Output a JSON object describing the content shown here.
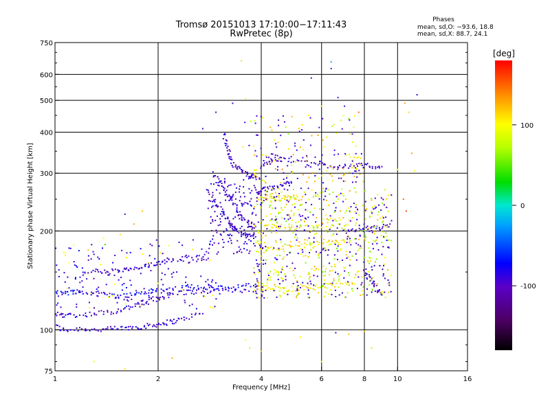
{
  "chart_data": {
    "type": "scatter",
    "title": "Tromsø 20151013 17:10:00−17:11:43",
    "subtitle": "RwPretec (8p)",
    "xlabel": "Frequency [MHz]",
    "ylabel": "Stationary phase Virtual Height [km]",
    "x_scale": "log",
    "y_scale": "log",
    "xlim": [
      1,
      16
    ],
    "ylim": [
      75,
      750
    ],
    "x_ticks": [
      1,
      2,
      4,
      6,
      8,
      10,
      16
    ],
    "x_gridlines": [
      2,
      4,
      6,
      8,
      10
    ],
    "y_ticks": [
      75,
      100,
      200,
      300,
      400,
      500,
      600,
      750
    ],
    "y_gridlines": [
      100,
      200,
      300,
      400,
      500,
      600
    ],
    "grid": true,
    "phases_box": {
      "header": "Phases",
      "line_o": "mean, sd,O: −93.6, 18.8",
      "line_x": "mean, sd,X:  88.7, 24.1"
    },
    "colorbar": {
      "label": "[deg]",
      "range": [
        -180,
        180
      ],
      "ticks": [
        100,
        0,
        -100
      ],
      "colormap": "rainbow (black → purple → blue → cyan → green → yellow → orange → red)"
    },
    "traces": [
      {
        "phase": -100,
        "points": [
          [
            1.0,
            103
          ],
          [
            1.05,
            100
          ],
          [
            1.1,
            100
          ],
          [
            1.2,
            101
          ],
          [
            1.3,
            100
          ],
          [
            1.4,
            100
          ],
          [
            1.5,
            101
          ],
          [
            1.6,
            101
          ],
          [
            1.7,
            102
          ],
          [
            1.8,
            102
          ],
          [
            1.9,
            103
          ],
          [
            2.0,
            104
          ],
          [
            2.1,
            105
          ],
          [
            2.2,
            106
          ],
          [
            2.3,
            107
          ],
          [
            2.5,
            110
          ],
          [
            2.7,
            112
          ]
        ]
      },
      {
        "phase": -100,
        "points": [
          [
            1.0,
            112
          ],
          [
            1.05,
            111
          ],
          [
            1.1,
            111
          ],
          [
            1.2,
            111
          ],
          [
            1.3,
            112
          ],
          [
            1.4,
            113
          ],
          [
            1.5,
            114
          ],
          [
            1.6,
            116
          ],
          [
            1.7,
            118
          ],
          [
            1.8,
            121
          ],
          [
            1.9,
            123
          ],
          [
            2.0,
            125
          ],
          [
            2.1,
            127
          ],
          [
            2.2,
            129
          ],
          [
            2.4,
            130
          ],
          [
            2.6,
            131
          ],
          [
            2.8,
            131
          ],
          [
            3.0,
            131
          ],
          [
            3.2,
            132
          ],
          [
            3.5,
            132
          ],
          [
            3.9,
            133
          ]
        ]
      },
      {
        "phase": -80,
        "points": [
          [
            1.0,
            129
          ],
          [
            1.05,
            130
          ],
          [
            1.1,
            130
          ],
          [
            1.15,
            131
          ],
          [
            1.2,
            130
          ],
          [
            1.3,
            129
          ],
          [
            1.4,
            128
          ],
          [
            1.5,
            127
          ],
          [
            1.6,
            127
          ],
          [
            1.7,
            128
          ],
          [
            1.8,
            130
          ],
          [
            1.9,
            131
          ],
          [
            2.0,
            132
          ],
          [
            2.2,
            133
          ],
          [
            2.4,
            134
          ],
          [
            2.6,
            134
          ],
          [
            2.8,
            134
          ],
          [
            3.0,
            135
          ],
          [
            3.3,
            135
          ],
          [
            3.6,
            136
          ],
          [
            3.9,
            136
          ]
        ]
      },
      {
        "phase": -100,
        "points": [
          [
            1.2,
            150
          ],
          [
            1.3,
            151
          ],
          [
            1.4,
            150
          ],
          [
            1.5,
            151
          ],
          [
            1.6,
            152
          ],
          [
            1.7,
            153
          ],
          [
            1.8,
            155
          ],
          [
            1.9,
            157
          ],
          [
            2.0,
            160
          ],
          [
            2.1,
            162
          ],
          [
            2.2,
            164
          ],
          [
            2.4,
            166
          ],
          [
            2.6,
            166
          ],
          [
            2.8,
            165
          ]
        ]
      },
      {
        "phase": -100,
        "points": [
          [
            2.8,
            265
          ],
          [
            2.9,
            250
          ],
          [
            3.0,
            237
          ],
          [
            3.1,
            225
          ],
          [
            3.2,
            215
          ],
          [
            3.3,
            206
          ],
          [
            3.4,
            200
          ],
          [
            3.5,
            196
          ],
          [
            3.6,
            194
          ],
          [
            3.7,
            193
          ],
          [
            3.85,
            192
          ]
        ]
      },
      {
        "phase": -100,
        "points": [
          [
            2.9,
            300
          ],
          [
            3.0,
            285
          ],
          [
            3.1,
            270
          ],
          [
            3.2,
            258
          ],
          [
            3.3,
            245
          ],
          [
            3.4,
            232
          ],
          [
            3.5,
            222
          ],
          [
            3.6,
            215
          ],
          [
            3.7,
            210
          ],
          [
            3.85,
            206
          ]
        ]
      },
      {
        "phase": -100,
        "points": [
          [
            3.1,
            400
          ],
          [
            3.15,
            370
          ],
          [
            3.2,
            350
          ],
          [
            3.25,
            335
          ],
          [
            3.3,
            322
          ],
          [
            3.4,
            312
          ],
          [
            3.5,
            305
          ],
          [
            3.6,
            300
          ],
          [
            3.7,
            296
          ],
          [
            3.8,
            292
          ],
          [
            3.95,
            290
          ]
        ]
      },
      {
        "phase": -100,
        "points": [
          [
            3.9,
            260
          ],
          [
            4.0,
            265
          ],
          [
            4.1,
            268
          ],
          [
            4.3,
            270
          ],
          [
            4.5,
            275
          ],
          [
            4.7,
            278
          ],
          [
            4.9,
            280
          ]
        ]
      },
      {
        "phase": -100,
        "points": [
          [
            4.0,
            320
          ],
          [
            4.2,
            325
          ],
          [
            4.4,
            330
          ],
          [
            4.6,
            330
          ],
          [
            5.0,
            328
          ],
          [
            5.5,
            322
          ],
          [
            6.0,
            318
          ],
          [
            6.5,
            316
          ],
          [
            7.0,
            316
          ],
          [
            7.5,
            316
          ],
          [
            8.0,
            316
          ],
          [
            8.5,
            315
          ],
          [
            9.0,
            314
          ]
        ]
      },
      {
        "phase": 100,
        "points": [
          [
            3.9,
            250
          ],
          [
            4.1,
            250
          ],
          [
            4.3,
            251
          ],
          [
            4.5,
            252
          ],
          [
            4.7,
            252
          ],
          [
            4.9,
            253
          ],
          [
            5.1,
            254
          ]
        ]
      },
      {
        "phase": 100,
        "points": [
          [
            3.9,
            135
          ],
          [
            4.1,
            134
          ],
          [
            4.3,
            134
          ],
          [
            4.6,
            133
          ],
          [
            4.9,
            133
          ],
          [
            5.2,
            134
          ],
          [
            5.5,
            135
          ],
          [
            6.0,
            136
          ],
          [
            6.5,
            136
          ],
          [
            7.0,
            137
          ],
          [
            7.5,
            138
          ]
        ]
      },
      {
        "phase": 100,
        "points": [
          [
            4.0,
            210
          ],
          [
            4.3,
            208
          ],
          [
            4.6,
            206
          ],
          [
            5.0,
            205
          ],
          [
            5.5,
            205
          ],
          [
            6.0,
            205
          ]
        ]
      },
      {
        "phase": 110,
        "points": [
          [
            3.9,
            175
          ],
          [
            4.2,
            176
          ],
          [
            4.6,
            178
          ],
          [
            5.0,
            180
          ],
          [
            5.5,
            182
          ],
          [
            6.0,
            183
          ],
          [
            6.5,
            184
          ],
          [
            7.0,
            185
          ]
        ]
      },
      {
        "phase": -100,
        "points": [
          [
            7.0,
            200
          ],
          [
            7.5,
            200
          ],
          [
            8.0,
            202
          ],
          [
            8.5,
            204
          ],
          [
            9.0,
            206
          ],
          [
            9.5,
            210
          ]
        ]
      },
      {
        "phase": -100,
        "points": [
          [
            8.0,
            150
          ],
          [
            8.2,
            145
          ],
          [
            8.4,
            140
          ],
          [
            8.6,
            135
          ],
          [
            8.8,
            130
          ],
          [
            9.0,
            128
          ]
        ]
      }
    ],
    "scatter": [
      {
        "x": 1.1,
        "y": 160,
        "phase": 100
      },
      {
        "x": 1.25,
        "y": 175,
        "phase": 120
      },
      {
        "x": 1.4,
        "y": 182,
        "phase": 40
      },
      {
        "x": 1.55,
        "y": 195,
        "phase": 110
      },
      {
        "x": 1.7,
        "y": 210,
        "phase": 130
      },
      {
        "x": 1.8,
        "y": 230,
        "phase": 120
      },
      {
        "x": 1.6,
        "y": 225,
        "phase": -100
      },
      {
        "x": 1.3,
        "y": 80,
        "phase": 90
      },
      {
        "x": 1.6,
        "y": 76,
        "phase": 110
      },
      {
        "x": 2.2,
        "y": 82,
        "phase": 130
      },
      {
        "x": 2.7,
        "y": 410,
        "phase": -100
      },
      {
        "x": 2.95,
        "y": 460,
        "phase": -110
      },
      {
        "x": 3.3,
        "y": 490,
        "phase": -100
      },
      {
        "x": 3.5,
        "y": 660,
        "phase": 110
      },
      {
        "x": 3.6,
        "y": 505,
        "phase": 100
      },
      {
        "x": 3.6,
        "y": 93,
        "phase": 100
      },
      {
        "x": 3.7,
        "y": 88,
        "phase": 110
      },
      {
        "x": 4.0,
        "y": 86,
        "phase": 120
      },
      {
        "x": 4.5,
        "y": 420,
        "phase": 110
      },
      {
        "x": 4.8,
        "y": 395,
        "phase": 60
      },
      {
        "x": 5.2,
        "y": 360,
        "phase": 130
      },
      {
        "x": 5.5,
        "y": 450,
        "phase": 100
      },
      {
        "x": 5.6,
        "y": 585,
        "phase": -100
      },
      {
        "x": 6.0,
        "y": 480,
        "phase": 110
      },
      {
        "x": 6.4,
        "y": 655,
        "phase": -20
      },
      {
        "x": 6.4,
        "y": 625,
        "phase": -100
      },
      {
        "x": 6.7,
        "y": 510,
        "phase": -100
      },
      {
        "x": 7.0,
        "y": 480,
        "phase": -100
      },
      {
        "x": 7.2,
        "y": 440,
        "phase": 60
      },
      {
        "x": 7.7,
        "y": 460,
        "phase": 150
      },
      {
        "x": 5.2,
        "y": 95,
        "phase": 100
      },
      {
        "x": 6.0,
        "y": 80,
        "phase": 100
      },
      {
        "x": 6.6,
        "y": 98,
        "phase": -100
      },
      {
        "x": 7.2,
        "y": 97,
        "phase": 120
      },
      {
        "x": 8.0,
        "y": 99,
        "phase": 120
      },
      {
        "x": 8.4,
        "y": 88,
        "phase": 110
      },
      {
        "x": 10.0,
        "y": 308,
        "phase": 100
      },
      {
        "x": 10.5,
        "y": 490,
        "phase": 130
      },
      {
        "x": 10.8,
        "y": 460,
        "phase": 110
      },
      {
        "x": 11.0,
        "y": 345,
        "phase": 130
      },
      {
        "x": 11.2,
        "y": 305,
        "phase": 100
      },
      {
        "x": 11.4,
        "y": 520,
        "phase": -100
      },
      {
        "x": 10.4,
        "y": 250,
        "phase": 150
      },
      {
        "x": 10.6,
        "y": 230,
        "phase": 160
      },
      {
        "x": 9.6,
        "y": 215,
        "phase": -100
      }
    ]
  }
}
